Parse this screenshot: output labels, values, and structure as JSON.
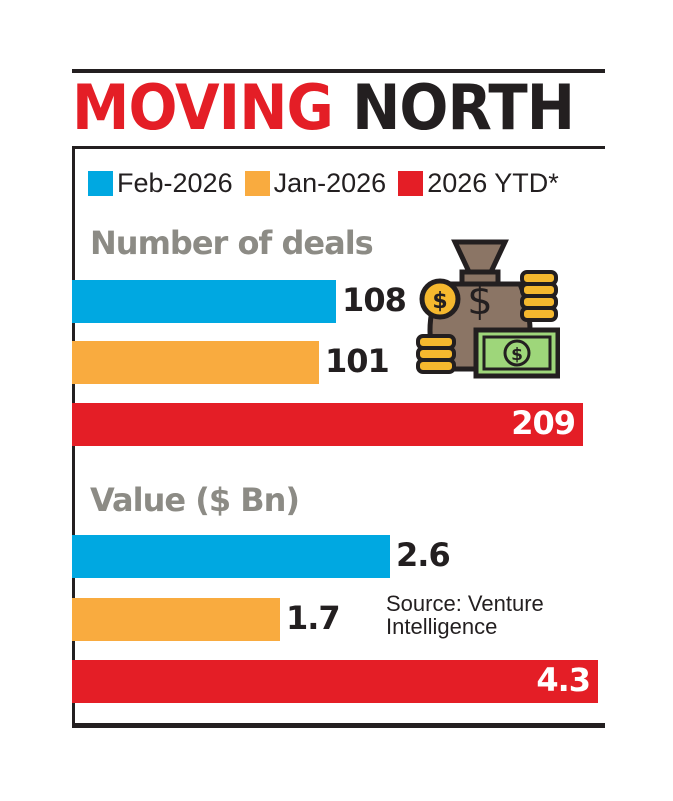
{
  "title": {
    "part1": "MOVING",
    "part2": "NORTH"
  },
  "legend": [
    {
      "label": "Feb-2026",
      "color": "#00a8e1"
    },
    {
      "label": "Jan-2026",
      "color": "#f9ab3f"
    },
    {
      "label": "2026 YTD*",
      "color": "#e41e26"
    }
  ],
  "source": {
    "line1": "Source: Venture",
    "line2": "Intelligence"
  },
  "icon": "money-bag-coins-cash-icon",
  "chart_data": [
    {
      "type": "bar",
      "orientation": "horizontal",
      "title": "Number of deals",
      "categories": [
        "Feb-2026",
        "Jan-2026",
        "2026 YTD*"
      ],
      "values": [
        108,
        101,
        209
      ],
      "labels": [
        "108",
        "101",
        "209"
      ],
      "colors": [
        "#00a8e1",
        "#f9ab3f",
        "#e41e26"
      ]
    },
    {
      "type": "bar",
      "orientation": "horizontal",
      "title": "Value ($ Bn)",
      "categories": [
        "Feb-2026",
        "Jan-2026",
        "2026 YTD*"
      ],
      "values": [
        2.6,
        1.7,
        4.3
      ],
      "labels": [
        "2.6",
        "1.7",
        "4.3"
      ],
      "colors": [
        "#00a8e1",
        "#f9ab3f",
        "#e41e26"
      ]
    }
  ]
}
